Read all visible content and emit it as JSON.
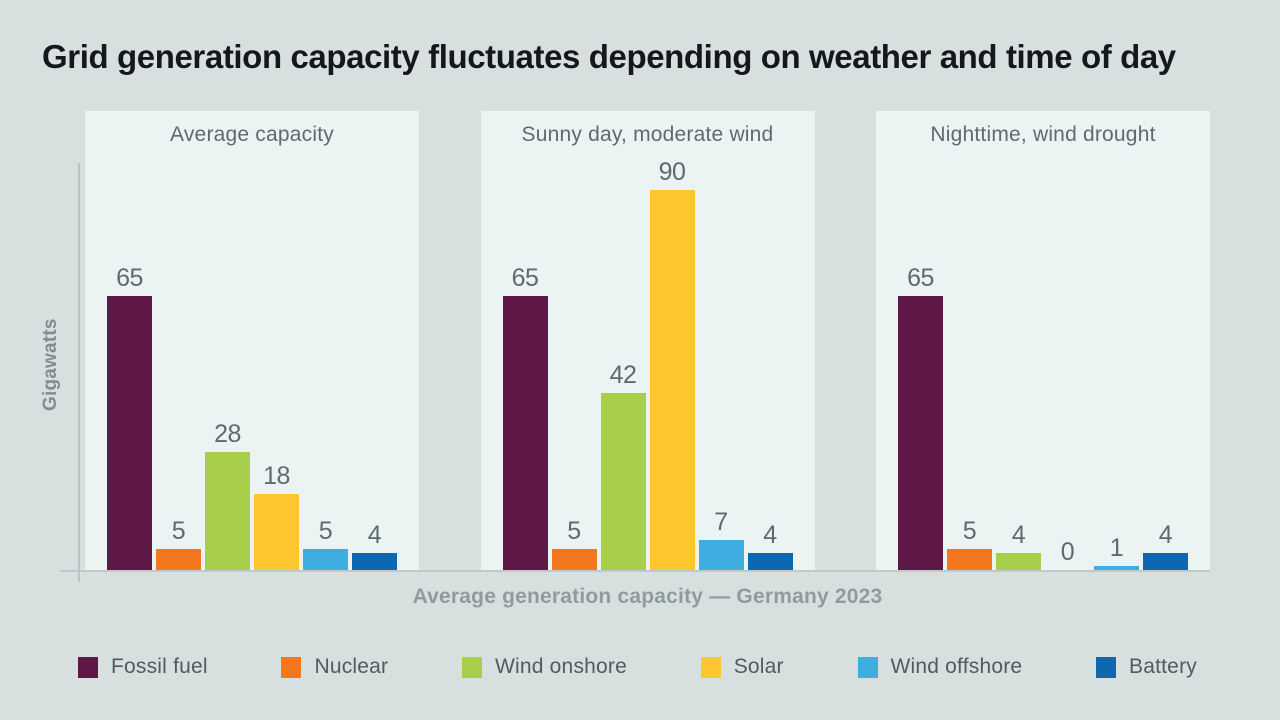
{
  "header": {
    "title": "Grid generation capacity fluctuates depending on weather and time of day"
  },
  "chart_data": {
    "type": "bar",
    "title": "Grid generation capacity fluctuates depending on weather and time of day",
    "xlabel": "Average generation capacity — Germany 2023",
    "ylabel": "Gigawatts",
    "unit": "gigawatts",
    "ylim": [
      0,
      95
    ],
    "grid": false,
    "legend_position": "bottom",
    "categories": [
      "Fossil fuel",
      "Nuclear",
      "Wind onshore",
      "Solar",
      "Wind offshore",
      "Battery"
    ],
    "series_colors": [
      "#5f1746",
      "#f3771e",
      "#a7cf4c",
      "#fec72f",
      "#3eade0",
      "#0e68af"
    ],
    "panels": [
      {
        "title": "Average capacity",
        "values": [
          65,
          5,
          28,
          18,
          5,
          4
        ]
      },
      {
        "title": "Sunny day, moderate wind",
        "values": [
          65,
          5,
          42,
          90,
          7,
          4
        ]
      },
      {
        "title": "Nighttime, wind drought",
        "values": [
          65,
          5,
          4,
          0,
          1,
          4
        ]
      }
    ]
  },
  "legend": {
    "items": [
      {
        "label": "Fossil fuel",
        "color": "#5f1746"
      },
      {
        "label": "Nuclear",
        "color": "#f3771e"
      },
      {
        "label": "Wind onshore",
        "color": "#a7cf4c"
      },
      {
        "label": "Solar",
        "color": "#fec72f"
      },
      {
        "label": "Wind offshore",
        "color": "#3eade0"
      },
      {
        "label": "Battery",
        "color": "#0e68af"
      }
    ]
  },
  "colors": {
    "page_background": "#d8dfdf",
    "panel_background": "#ebf4f2",
    "title_text": "#14181b",
    "value_text": "#5d6b6e",
    "axis_label_text": "#8e9c9d",
    "axis_line": "#b9c3c4"
  }
}
